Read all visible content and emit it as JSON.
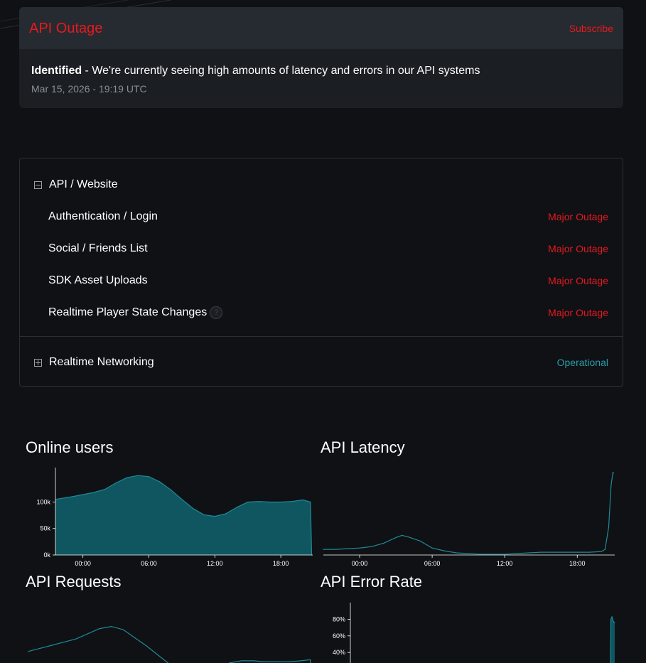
{
  "incident": {
    "title": "API Outage",
    "subscribe_label": "Subscribe",
    "status": "Identified",
    "message": " - We're currently seeing high amounts of latency and errors in our API systems",
    "timestamp": "Mar 15, 2026 - 19:19 UTC"
  },
  "components": {
    "group1": {
      "name": "API / Website",
      "items": [
        {
          "name": "Authentication / Login",
          "status": "Major Outage"
        },
        {
          "name": "Social / Friends List",
          "status": "Major Outage"
        },
        {
          "name": "SDK Asset Uploads",
          "status": "Major Outage"
        },
        {
          "name": "Realtime Player State Changes",
          "status": "Major Outage",
          "help": "?"
        }
      ]
    },
    "group2": {
      "name": "Realtime Networking",
      "status": "Operational"
    }
  },
  "colors": {
    "outage": "#e8191e",
    "operational": "#2a9cad",
    "chart_line": "#1f8a99",
    "chart_fill": "#0f5660"
  },
  "chart_data": [
    {
      "type": "area",
      "title": "Online users",
      "x": [
        -2.5,
        -1,
        0,
        1,
        2,
        3,
        4,
        5,
        6,
        7,
        8,
        9,
        10,
        11,
        12,
        13,
        14,
        15,
        16,
        17,
        18,
        19,
        20,
        20.7,
        20.8
      ],
      "y": [
        105000,
        110000,
        114000,
        118000,
        124000,
        136000,
        146000,
        150000,
        148000,
        138000,
        123000,
        105000,
        88000,
        76000,
        73000,
        78000,
        90000,
        100000,
        101000,
        100000,
        100000,
        101000,
        104000,
        100000,
        0
      ],
      "x_ticks": [
        "00:00",
        "06:00",
        "12:00",
        "18:00"
      ],
      "x_tick_values": [
        0,
        6,
        12,
        18
      ],
      "y_ticks": [
        "0k",
        "50k",
        "100k"
      ],
      "y_tick_values": [
        0,
        50000,
        100000
      ],
      "xlim": [
        -2.5,
        20.9
      ],
      "ylim": [
        0,
        165000
      ]
    },
    {
      "type": "line",
      "title": "API Latency",
      "x": [
        -3,
        -2,
        -1,
        0,
        1,
        2,
        3,
        3.5,
        4,
        5,
        6,
        7,
        8,
        9,
        10,
        11,
        12,
        13,
        14,
        15,
        16,
        17,
        18,
        19,
        20,
        20.3,
        20.6,
        20.8,
        20.95,
        21
      ],
      "y": [
        8,
        8,
        9,
        10,
        12,
        17,
        25,
        28,
        26,
        20,
        10,
        6,
        3,
        2,
        1,
        1,
        1,
        2,
        3,
        4,
        4,
        4,
        4,
        4,
        5,
        8,
        40,
        100,
        118,
        117
      ],
      "x_ticks": [
        "00:00",
        "06:00",
        "12:00",
        "18:00"
      ],
      "x_tick_values": [
        0,
        6,
        12,
        18
      ],
      "xlim": [
        -3,
        21.1
      ],
      "ylim": [
        0,
        125
      ]
    },
    {
      "type": "line",
      "title": "API Requests",
      "x": [
        -3,
        -2,
        -1,
        0,
        1,
        2,
        3,
        4,
        5,
        6,
        7,
        8,
        9,
        10,
        11,
        12,
        13,
        14,
        15,
        16,
        17,
        18,
        19,
        20,
        20.8,
        20.9
      ],
      "y": [
        33,
        36,
        39,
        42,
        45,
        50,
        55,
        57,
        54,
        46,
        38,
        29,
        20,
        12,
        6,
        5,
        16,
        22,
        24,
        24,
        23,
        23,
        23,
        24,
        25,
        0
      ],
      "xlim": [
        -3,
        21
      ],
      "ylim": [
        0,
        80
      ]
    },
    {
      "type": "area",
      "title": "API Error Rate",
      "x": [
        -3,
        20.6,
        20.65,
        20.75,
        20.85,
        20.95,
        21
      ],
      "y": [
        0,
        0,
        80,
        83,
        78,
        76,
        76
      ],
      "y_ticks": [
        "40%",
        "60%",
        "80%"
      ],
      "y_tick_values": [
        40,
        60,
        80
      ],
      "xlim": [
        -3,
        21
      ],
      "ylim": [
        0,
        100
      ]
    }
  ]
}
